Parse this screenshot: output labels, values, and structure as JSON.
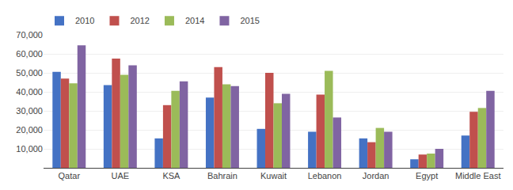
{
  "chart_data": {
    "type": "bar",
    "categories": [
      "Qatar",
      "UAE",
      "KSA",
      "Bahrain",
      "Kuwait",
      "Lebanon",
      "Jordan",
      "Egypt",
      "Middle East"
    ],
    "series": [
      {
        "name": "2010",
        "color": "#4472C4",
        "values": [
          50500,
          43500,
          15500,
          37000,
          20500,
          19000,
          15500,
          4500,
          17000
        ]
      },
      {
        "name": "2012",
        "color": "#C0504D",
        "values": [
          47000,
          57500,
          33000,
          53000,
          50000,
          38500,
          13500,
          7000,
          29500
        ]
      },
      {
        "name": "2014",
        "color": "#9BBB59",
        "values": [
          44500,
          49000,
          40500,
          44000,
          34000,
          51000,
          21000,
          7500,
          31500
        ]
      },
      {
        "name": "2015",
        "color": "#8064A2",
        "values": [
          64500,
          54000,
          45500,
          43000,
          39000,
          26500,
          19000,
          10000,
          40500
        ]
      }
    ],
    "ylim": [
      0,
      70000
    ],
    "yticks": [
      {
        "value": 0,
        "label": " "
      },
      {
        "value": 10000,
        "label": "10,000"
      },
      {
        "value": 20000,
        "label": "20,000"
      },
      {
        "value": 30000,
        "label": "30,000"
      },
      {
        "value": 40000,
        "label": "40,000"
      },
      {
        "value": 50000,
        "label": "50,000"
      },
      {
        "value": 60000,
        "label": "60,000"
      },
      {
        "value": 70000,
        "label": "70,000"
      }
    ],
    "grid": true,
    "legend": "upper left"
  }
}
